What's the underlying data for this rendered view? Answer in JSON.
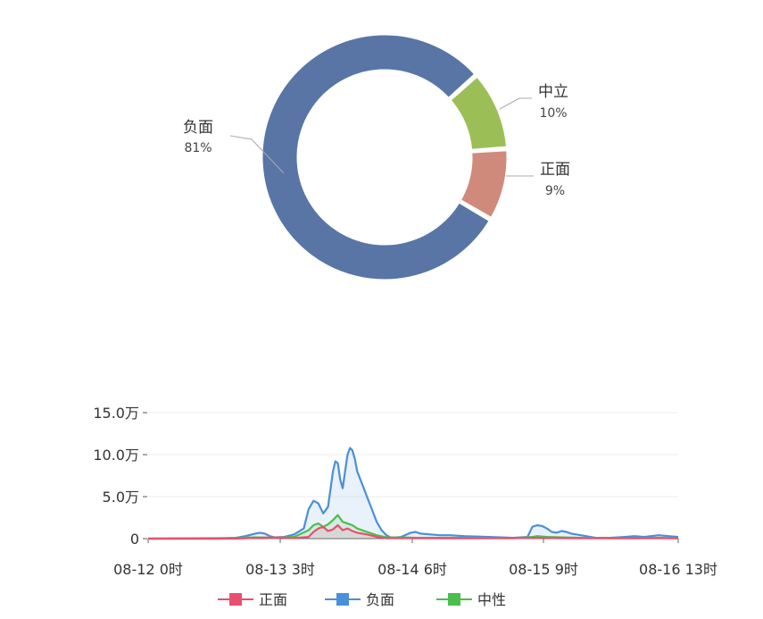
{
  "chart_data": [
    {
      "type": "pie",
      "subtype": "donut",
      "slices": [
        {
          "label": "负面",
          "value": 81,
          "percent_text": "81%",
          "color": "#5875a6"
        },
        {
          "label": "中立",
          "value": 10,
          "percent_text": "10%",
          "color": "#9bbf56"
        },
        {
          "label": "正面",
          "value": 9,
          "percent_text": "9%",
          "color": "#d08a7c"
        }
      ]
    },
    {
      "type": "line",
      "x_tick_labels": [
        "08-12 0时",
        "08-13 3时",
        "08-14 6时",
        "08-15 9时",
        "08-16 13时"
      ],
      "y_tick_labels": [
        "15.0万",
        "10.0万",
        "5.0万",
        "0"
      ],
      "ylim": [
        0,
        150000
      ],
      "x_unit": "hours since 08-12 0时",
      "xlim": [
        0,
        109
      ],
      "grid": true,
      "legend_position": "bottom",
      "series": [
        {
          "name": "正面",
          "color": "#e8506e",
          "points": [
            [
              0,
              0
            ],
            [
              18,
              0
            ],
            [
              22,
              1000
            ],
            [
              27,
              1500
            ],
            [
              30,
              500
            ],
            [
              33,
              2000
            ],
            [
              34,
              8000
            ],
            [
              35,
              12000
            ],
            [
              36,
              14000
            ],
            [
              37,
              9000
            ],
            [
              38,
              11000
            ],
            [
              39,
              16000
            ],
            [
              40,
              10000
            ],
            [
              41,
              12000
            ],
            [
              42,
              9000
            ],
            [
              43,
              7000
            ],
            [
              45,
              5000
            ],
            [
              47,
              2000
            ],
            [
              49,
              500
            ],
            [
              54,
              500
            ],
            [
              62,
              300
            ],
            [
              75,
              500
            ],
            [
              80,
              1000
            ],
            [
              85,
              500
            ],
            [
              95,
              300
            ],
            [
              105,
              500
            ],
            [
              109,
              300
            ]
          ]
        },
        {
          "name": "负面",
          "color": "#4a8fd9",
          "points": [
            [
              0,
              0
            ],
            [
              15,
              500
            ],
            [
              18,
              1000
            ],
            [
              20,
              3000
            ],
            [
              22,
              6000
            ],
            [
              23,
              7000
            ],
            [
              24,
              6000
            ],
            [
              25,
              3000
            ],
            [
              26,
              1500
            ],
            [
              28,
              2000
            ],
            [
              30,
              5000
            ],
            [
              32,
              12000
            ],
            [
              33,
              35000
            ],
            [
              34,
              45000
            ],
            [
              35,
              42000
            ],
            [
              36,
              30000
            ],
            [
              37,
              38000
            ],
            [
              38,
              80000
            ],
            [
              38.5,
              92000
            ],
            [
              39,
              90000
            ],
            [
              39.5,
              70000
            ],
            [
              40,
              60000
            ],
            [
              40.5,
              80000
            ],
            [
              41,
              100000
            ],
            [
              41.5,
              108000
            ],
            [
              42,
              105000
            ],
            [
              42.5,
              95000
            ],
            [
              43,
              80000
            ],
            [
              44,
              65000
            ],
            [
              45,
              50000
            ],
            [
              46,
              35000
            ],
            [
              47,
              20000
            ],
            [
              48,
              10000
            ],
            [
              49,
              4000
            ],
            [
              50,
              1000
            ],
            [
              52,
              2000
            ],
            [
              54,
              7000
            ],
            [
              55,
              8000
            ],
            [
              56,
              6000
            ],
            [
              58,
              5000
            ],
            [
              60,
              4000
            ],
            [
              62,
              4000
            ],
            [
              65,
              3000
            ],
            [
              70,
              2000
            ],
            [
              75,
              1000
            ],
            [
              78,
              2000
            ],
            [
              79,
              14000
            ],
            [
              80,
              16000
            ],
            [
              81,
              15000
            ],
            [
              82,
              12000
            ],
            [
              83,
              8000
            ],
            [
              84,
              7000
            ],
            [
              85,
              9000
            ],
            [
              86,
              8000
            ],
            [
              87,
              6000
            ],
            [
              88,
              5000
            ],
            [
              90,
              3000
            ],
            [
              92,
              1000
            ],
            [
              95,
              1000
            ],
            [
              98,
              2000
            ],
            [
              100,
              3000
            ],
            [
              102,
              2000
            ],
            [
              105,
              4000
            ],
            [
              107,
              3000
            ],
            [
              109,
              2000
            ]
          ]
        },
        {
          "name": "中性",
          "color": "#4bbf4b",
          "points": [
            [
              0,
              0
            ],
            [
              15,
              0
            ],
            [
              18,
              1000
            ],
            [
              22,
              1500
            ],
            [
              26,
              1000
            ],
            [
              30,
              2000
            ],
            [
              33,
              10000
            ],
            [
              34,
              16000
            ],
            [
              35,
              18000
            ],
            [
              36,
              14000
            ],
            [
              37,
              17000
            ],
            [
              38,
              22000
            ],
            [
              39,
              28000
            ],
            [
              40,
              20000
            ],
            [
              41,
              18000
            ],
            [
              42,
              16000
            ],
            [
              43,
              12000
            ],
            [
              45,
              8000
            ],
            [
              47,
              4000
            ],
            [
              49,
              1500
            ],
            [
              52,
              1500
            ],
            [
              55,
              1000
            ],
            [
              60,
              1000
            ],
            [
              65,
              1000
            ],
            [
              75,
              500
            ],
            [
              79,
              2000
            ],
            [
              80,
              3000
            ],
            [
              82,
              2000
            ],
            [
              85,
              1500
            ],
            [
              90,
              800
            ],
            [
              100,
              500
            ],
            [
              105,
              1000
            ],
            [
              109,
              500
            ]
          ]
        }
      ]
    }
  ]
}
